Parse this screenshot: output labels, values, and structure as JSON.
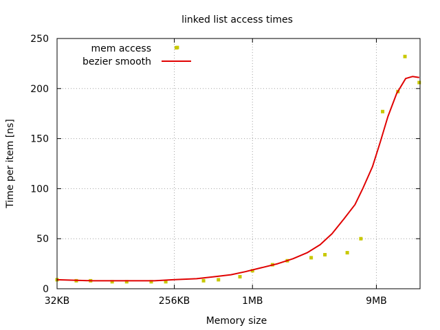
{
  "chart_data": {
    "type": "scatter",
    "title": "linked list access times",
    "xlabel": "Memory size",
    "ylabel": "Time per item [ns]",
    "x_scale": "log",
    "x_unit": "KB",
    "xlim": [
      32,
      20000
    ],
    "ylim": [
      0,
      250
    ],
    "grid": true,
    "legend_position": "top-left",
    "x_ticks": [
      {
        "label": "32KB",
        "value": 32
      },
      {
        "label": "256KB",
        "value": 256
      },
      {
        "label": "1MB",
        "value": 1024
      },
      {
        "label": "9MB",
        "value": 9216
      }
    ],
    "y_ticks": [
      0,
      50,
      100,
      150,
      200,
      250
    ],
    "series": [
      {
        "name": "mem access",
        "kind": "points",
        "color": "#c8c800",
        "x": [
          32,
          45,
          58,
          85,
          110,
          170,
          220,
          430,
          560,
          820,
          1024,
          1460,
          1900,
          2900,
          3700,
          5500,
          7000,
          10300,
          13500,
          19700
        ],
        "y": [
          9,
          8,
          8,
          7,
          7,
          7,
          7,
          8,
          9,
          12,
          18,
          24,
          28,
          31,
          34,
          36,
          50,
          177,
          197,
          206
        ]
      },
      {
        "name": "",
        "kind": "points",
        "color": "#c8c800",
        "x": [
          270,
          15300
        ],
        "y": [
          241,
          232
        ]
      },
      {
        "name": "bezier smooth",
        "kind": "line",
        "color": "#e00000",
        "x": [
          32,
          60,
          100,
          180,
          250,
          380,
          520,
          700,
          900,
          1200,
          1600,
          2100,
          2700,
          3400,
          4200,
          5200,
          6300,
          7300,
          8600,
          9900,
          11300,
          13200,
          15500,
          17500,
          19700
        ],
        "y": [
          9,
          8,
          8,
          8,
          9,
          10,
          12,
          14,
          17,
          21,
          25,
          30,
          36,
          44,
          55,
          70,
          84,
          101,
          122,
          147,
          172,
          195,
          210,
          212,
          211
        ]
      }
    ]
  }
}
